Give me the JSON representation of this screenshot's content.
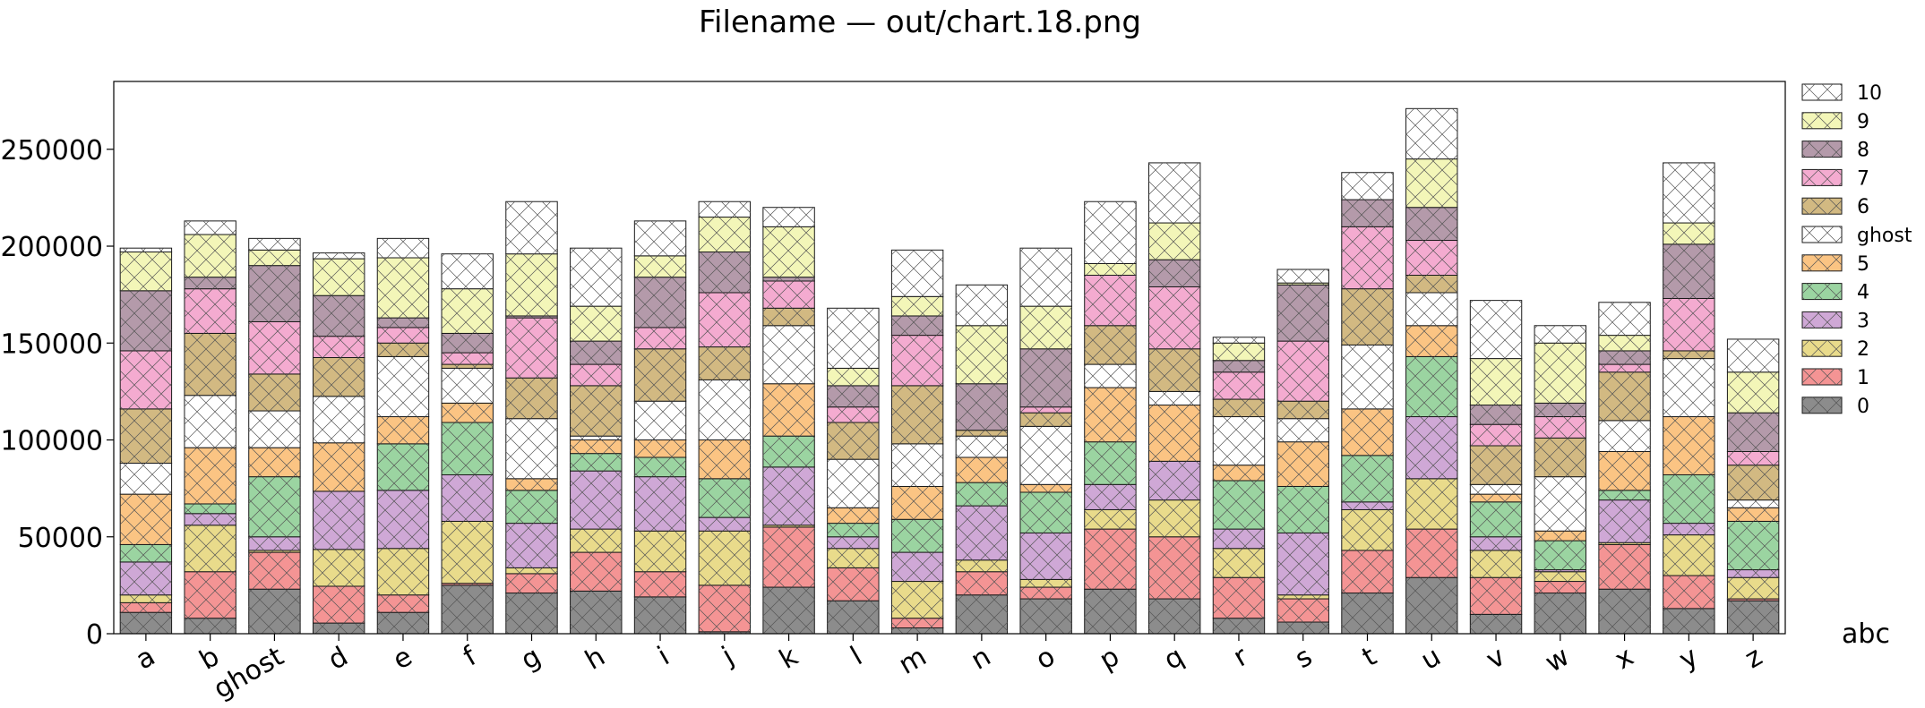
{
  "chart_data": {
    "type": "bar",
    "stacked": true,
    "title": "Filename — out/chart.18.png",
    "xlabel": "",
    "ylabel": "",
    "corner_label": "abc",
    "ylim": [
      0,
      285000
    ],
    "yticks": [
      0,
      50000,
      100000,
      150000,
      200000,
      250000
    ],
    "grid": false,
    "legend_position": "right",
    "categories": [
      "a",
      "b",
      "ghost",
      "d",
      "e",
      "f",
      "g",
      "h",
      "i",
      "j",
      "k",
      "l",
      "m",
      "n",
      "o",
      "p",
      "q",
      "r",
      "s",
      "t",
      "u",
      "v",
      "w",
      "x",
      "y",
      "z"
    ],
    "series": [
      {
        "name": "0",
        "color": "#8c8c8c",
        "values": [
          11000,
          8000,
          23000,
          5500,
          11000,
          25000,
          21000,
          22000,
          19000,
          1000,
          24000,
          17000,
          3000,
          20000,
          18000,
          23000,
          18000,
          8000,
          6000,
          21000,
          29000,
          10000,
          21000,
          23000,
          13000,
          17000
        ]
      },
      {
        "name": "1",
        "color": "#f49494",
        "values": [
          5000,
          24000,
          19000,
          19000,
          9000,
          1000,
          10000,
          20000,
          13000,
          24000,
          31000,
          17000,
          5000,
          12000,
          6000,
          31000,
          32000,
          21000,
          12000,
          22000,
          25000,
          19000,
          6000,
          23000,
          17000,
          1000
        ]
      },
      {
        "name": "2",
        "color": "#e9db8b",
        "values": [
          4000,
          24000,
          1000,
          19000,
          24000,
          32000,
          3000,
          12000,
          21000,
          28000,
          1000,
          10000,
          19000,
          6000,
          4000,
          10000,
          19000,
          15000,
          2000,
          21000,
          26000,
          14000,
          5000,
          1000,
          21000,
          11000
        ]
      },
      {
        "name": "3",
        "color": "#cfa8d6",
        "values": [
          17000,
          6000,
          7000,
          30000,
          30000,
          24000,
          23000,
          30000,
          28000,
          7000,
          30000,
          6000,
          15000,
          28000,
          24000,
          13000,
          20000,
          10000,
          32000,
          4000,
          32000,
          7000,
          1000,
          22000,
          6000,
          4000
        ]
      },
      {
        "name": "4",
        "color": "#9bd4a1",
        "values": [
          9000,
          5000,
          31000,
          0,
          24000,
          27000,
          17000,
          9000,
          10000,
          20000,
          16000,
          7000,
          17000,
          12000,
          21000,
          22000,
          0,
          25000,
          24000,
          24000,
          31000,
          18000,
          15000,
          5000,
          25000,
          25000
        ]
      },
      {
        "name": "5",
        "color": "#fbc483",
        "values": [
          26000,
          29000,
          15000,
          25000,
          14000,
          10000,
          6000,
          7000,
          9000,
          20000,
          27000,
          8000,
          17000,
          13000,
          4000,
          28000,
          29000,
          8000,
          23000,
          24000,
          16000,
          4000,
          5000,
          20000,
          30000,
          7000
        ]
      },
      {
        "name": "ghost",
        "color": "#ffffff",
        "values": [
          16000,
          27000,
          19000,
          24000,
          31000,
          18000,
          31000,
          2000,
          20000,
          31000,
          30000,
          25000,
          22000,
          11000,
          30000,
          12000,
          7000,
          25000,
          12000,
          33000,
          17000,
          5000,
          28000,
          16000,
          30000,
          4000
        ]
      },
      {
        "name": "6",
        "color": "#d2b982",
        "values": [
          28000,
          32000,
          19000,
          20000,
          7000,
          2000,
          21000,
          26000,
          27000,
          17000,
          9000,
          19000,
          30000,
          3000,
          7000,
          20000,
          22000,
          9000,
          9000,
          29000,
          9000,
          20000,
          20000,
          25000,
          4000,
          18000
        ]
      },
      {
        "name": "7",
        "color": "#f4abd0",
        "values": [
          30000,
          23000,
          27000,
          11000,
          8000,
          6000,
          31000,
          11000,
          11000,
          28000,
          14000,
          8000,
          26000,
          0,
          3000,
          26000,
          32000,
          14000,
          31000,
          32000,
          18000,
          11000,
          11000,
          4000,
          27000,
          7000
        ]
      },
      {
        "name": "8",
        "color": "#b49aaa",
        "values": [
          31000,
          6000,
          29000,
          21000,
          5000,
          10000,
          1000,
          12000,
          26000,
          21000,
          2000,
          11000,
          10000,
          24000,
          30000,
          0,
          14000,
          6000,
          29000,
          14000,
          17000,
          10000,
          7000,
          7000,
          28000,
          20000
        ]
      },
      {
        "name": "9",
        "color": "#f3f6b8",
        "values": [
          20000,
          22000,
          8000,
          19000,
          31000,
          23000,
          32000,
          18000,
          11000,
          18000,
          26000,
          9000,
          10000,
          30000,
          22000,
          6000,
          19000,
          9000,
          1000,
          0,
          25000,
          24000,
          31000,
          8000,
          11000,
          21000
        ]
      },
      {
        "name": "10",
        "color": "#ffffff",
        "values": [
          2000,
          7000,
          6000,
          3000,
          10000,
          18000,
          27000,
          30000,
          18000,
          8000,
          10000,
          31000,
          24000,
          21000,
          30000,
          32000,
          31000,
          3000,
          7000,
          14000,
          26000,
          30000,
          9000,
          17000,
          31000,
          17000
        ]
      }
    ]
  }
}
